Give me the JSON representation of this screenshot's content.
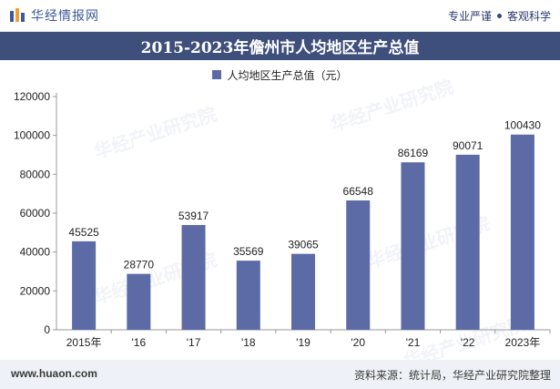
{
  "header": {
    "brand": "华经情报网",
    "tagline_left": "专业严谨",
    "tagline_right": "客观科学"
  },
  "watermark": {
    "text": "华经产业研究院"
  },
  "footer": {
    "url": "www.huaon.com",
    "source": "资料来源：统计局，华经产业研究院整理"
  },
  "colors": {
    "bar": "#5c6aa6",
    "title_bg": "#3f4f7b"
  },
  "chart_data": {
    "type": "bar",
    "title": "2015-2023年儋州市人均地区生产总值",
    "categories": [
      "2015年",
      "'16",
      "'17",
      "'18",
      "'19",
      "'20",
      "'21",
      "'22",
      "2023年"
    ],
    "series": [
      {
        "name": "人均地区生产总值（元）",
        "values": [
          45525,
          28770,
          53917,
          35569,
          39065,
          66548,
          86169,
          90071,
          100430
        ]
      }
    ],
    "yticks": [
      "0",
      "20000",
      "40000",
      "60000",
      "80000",
      "100000",
      "120000"
    ],
    "ylim": [
      0,
      120000
    ],
    "grid": false,
    "legend": "top-center"
  }
}
